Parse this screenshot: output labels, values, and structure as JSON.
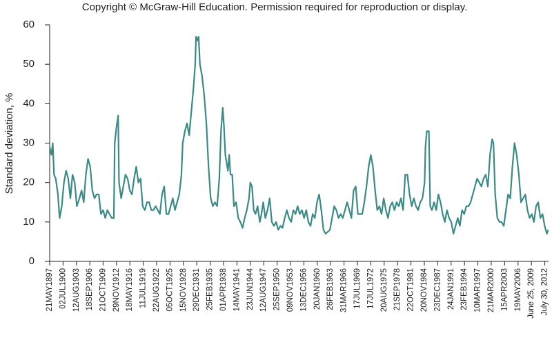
{
  "header": {
    "copyright": "Copyright © McGraw-Hill Education. Permission required for reproduction or display."
  },
  "chart_data": {
    "type": "line",
    "y_label": "Standard deviation, %",
    "xlim": [
      1897.39,
      2013.3
    ],
    "ylim": [
      0,
      60
    ],
    "yticks": [
      0,
      10,
      20,
      30,
      40,
      50,
      60
    ],
    "xticks": [
      {
        "value": 1897.39,
        "label": "21MAY1897"
      },
      {
        "value": 1900.5,
        "label": "02JUL1900"
      },
      {
        "value": 1903.61,
        "label": "12AUG1903"
      },
      {
        "value": 1906.71,
        "label": "18SEP1906"
      },
      {
        "value": 1909.8,
        "label": "21OCT1909"
      },
      {
        "value": 1912.91,
        "label": "29NOV1912"
      },
      {
        "value": 1916.02,
        "label": "18MAY1916"
      },
      {
        "value": 1919.13,
        "label": "11JUL1919"
      },
      {
        "value": 1922.24,
        "label": "22AUG1922"
      },
      {
        "value": 1925.35,
        "label": "05OCT1925"
      },
      {
        "value": 1928.46,
        "label": "15NOV1928"
      },
      {
        "value": 1931.57,
        "label": "29DEC1931"
      },
      {
        "value": 1934.68,
        "label": "25FEB1935"
      },
      {
        "value": 1937.79,
        "label": "01APR1938"
      },
      {
        "value": 1940.9,
        "label": "14MAY1941"
      },
      {
        "value": 1944.01,
        "label": "23JUN1944"
      },
      {
        "value": 1947.12,
        "label": "12AUG1947"
      },
      {
        "value": 1950.23,
        "label": "25SEP1950"
      },
      {
        "value": 1953.34,
        "label": "09NOV1953"
      },
      {
        "value": 1956.45,
        "label": "13DEC1956"
      },
      {
        "value": 1959.56,
        "label": "20JAN1960"
      },
      {
        "value": 1962.67,
        "label": "26FEB1963"
      },
      {
        "value": 1965.78,
        "label": "31MAR1966"
      },
      {
        "value": 1968.89,
        "label": "17JUL1969"
      },
      {
        "value": 1972.0,
        "label": "17JUL1972"
      },
      {
        "value": 1975.11,
        "label": "20AUG1975"
      },
      {
        "value": 1978.22,
        "label": "21SEP1978"
      },
      {
        "value": 1981.33,
        "label": "22OCT1981"
      },
      {
        "value": 1984.44,
        "label": "20NOV1984"
      },
      {
        "value": 1987.55,
        "label": "23DEC1987"
      },
      {
        "value": 1990.66,
        "label": "24JAN1991"
      },
      {
        "value": 1993.77,
        "label": "23FEB1994"
      },
      {
        "value": 1996.88,
        "label": "10MAR1997"
      },
      {
        "value": 1999.99,
        "label": "21MAR2000"
      },
      {
        "value": 2003.1,
        "label": "15APR2003"
      },
      {
        "value": 2006.21,
        "label": "19MAY2006"
      },
      {
        "value": 2009.32,
        "label": "June 25, 2009"
      },
      {
        "value": 2012.43,
        "label": "July 30, 2012"
      }
    ],
    "x": [
      1897.4,
      1897.8,
      1898.1,
      1898.4,
      1898.8,
      1899.3,
      1899.7,
      1900.2,
      1900.7,
      1901.2,
      1901.7,
      1902.2,
      1902.7,
      1903.2,
      1903.7,
      1904.3,
      1904.8,
      1905.3,
      1905.8,
      1906.3,
      1906.8,
      1907.3,
      1907.8,
      1908.3,
      1908.8,
      1909.3,
      1909.8,
      1910.3,
      1910.8,
      1911.3,
      1911.8,
      1912.3,
      1912.5,
      1912.9,
      1913.3,
      1913.5,
      1914.0,
      1914.5,
      1915.0,
      1915.5,
      1916.0,
      1916.5,
      1917.0,
      1917.5,
      1918.0,
      1918.5,
      1919.0,
      1919.5,
      1920.0,
      1920.5,
      1921.0,
      1921.5,
      1922.0,
      1922.5,
      1923.0,
      1923.5,
      1924.0,
      1924.5,
      1925.0,
      1925.5,
      1926.0,
      1926.5,
      1927.0,
      1927.5,
      1928.0,
      1928.3,
      1928.8,
      1929.3,
      1929.8,
      1930.3,
      1930.8,
      1931.2,
      1931.4,
      1931.7,
      1932.0,
      1932.3,
      1932.8,
      1933.3,
      1933.8,
      1934.3,
      1934.8,
      1935.3,
      1935.8,
      1936.3,
      1936.8,
      1937.2,
      1937.6,
      1937.9,
      1938.2,
      1938.5,
      1938.8,
      1939.1,
      1939.4,
      1939.8,
      1940.2,
      1940.7,
      1941.2,
      1941.7,
      1942.2,
      1942.7,
      1943.2,
      1943.7,
      1944.0,
      1944.4,
      1944.8,
      1945.2,
      1945.7,
      1946.2,
      1946.6,
      1947.0,
      1947.5,
      1948.0,
      1948.5,
      1949.0,
      1949.5,
      1950.0,
      1950.5,
      1951.0,
      1951.5,
      1952.0,
      1952.5,
      1953.0,
      1953.5,
      1954.0,
      1954.5,
      1955.0,
      1955.5,
      1956.0,
      1956.5,
      1957.0,
      1957.5,
      1958.0,
      1958.5,
      1959.0,
      1959.5,
      1960.0,
      1960.5,
      1961.0,
      1961.5,
      1962.0,
      1962.5,
      1963.0,
      1963.5,
      1964.0,
      1964.5,
      1965.0,
      1965.5,
      1966.0,
      1966.5,
      1967.0,
      1967.5,
      1968.0,
      1968.5,
      1969.0,
      1969.5,
      1970.0,
      1970.5,
      1971.0,
      1971.5,
      1972.0,
      1972.5,
      1973.0,
      1973.5,
      1974.0,
      1974.5,
      1975.0,
      1975.5,
      1976.0,
      1976.5,
      1977.0,
      1977.5,
      1978.0,
      1978.5,
      1979.0,
      1979.5,
      1980.0,
      1980.5,
      1981.0,
      1981.5,
      1982.0,
      1982.5,
      1983.0,
      1983.5,
      1984.0,
      1984.5,
      1984.7,
      1985.0,
      1985.5,
      1985.8,
      1986.2,
      1986.7,
      1987.2,
      1987.7,
      1988.2,
      1988.7,
      1989.2,
      1989.7,
      1990.2,
      1990.7,
      1991.2,
      1991.7,
      1992.2,
      1992.7,
      1993.2,
      1993.7,
      1994.2,
      1994.7,
      1995.2,
      1995.7,
      1996.2,
      1996.7,
      1997.2,
      1997.7,
      1998.2,
      1998.7,
      1999.2,
      1999.7,
      2000.2,
      2000.5,
      2000.9,
      2001.4,
      2001.9,
      2002.4,
      2002.9,
      2003.4,
      2003.9,
      2004.4,
      2004.9,
      2005.4,
      2005.9,
      2006.4,
      2006.9,
      2007.4,
      2007.9,
      2008.4,
      2008.9,
      2009.4,
      2009.9,
      2010.4,
      2010.9,
      2011.4,
      2011.9,
      2012.4,
      2012.9,
      2013.2
    ],
    "series": [
      {
        "color": "#3a8a87",
        "values": [
          29,
          27,
          30,
          22,
          21,
          17,
          11,
          14,
          20,
          23,
          21,
          16,
          22,
          20,
          14,
          16,
          18,
          15,
          22,
          26,
          24,
          18,
          16,
          17,
          17,
          12,
          13,
          11,
          13,
          12,
          11,
          11,
          30,
          34,
          37,
          20,
          16,
          19,
          22,
          21,
          18,
          17,
          21,
          24,
          20,
          21,
          14,
          13,
          15,
          15,
          13,
          13,
          14,
          13,
          12,
          17,
          19,
          12,
          12,
          14,
          16,
          13,
          15,
          17,
          22,
          30,
          33,
          35,
          32,
          38,
          44,
          50,
          57,
          56,
          57,
          50,
          47,
          42,
          35,
          24,
          16,
          14,
          15,
          14,
          21,
          33,
          39,
          34,
          27,
          25,
          23,
          27,
          22,
          22,
          14,
          15,
          11,
          10,
          8.5,
          11,
          13,
          16,
          20,
          19,
          13,
          12,
          14,
          10,
          12,
          15,
          11,
          13,
          16,
          10,
          9,
          10,
          8,
          9,
          8.5,
          11,
          13,
          11,
          10,
          13,
          12,
          14,
          12,
          13,
          11,
          13,
          10,
          9,
          12,
          11,
          15,
          17,
          13,
          8,
          7,
          7.5,
          8,
          11,
          14,
          13,
          11,
          12,
          11,
          13,
          15,
          13,
          11,
          18,
          19,
          12,
          12,
          12,
          15,
          19,
          24,
          27,
          24,
          18,
          13,
          14,
          12,
          16,
          13,
          11,
          14,
          15,
          13,
          15,
          14,
          16,
          13,
          22,
          22,
          17,
          14,
          16,
          14,
          13,
          15,
          16,
          20,
          29,
          33,
          33,
          14,
          13,
          15,
          13,
          17,
          15,
          12,
          10,
          13,
          11,
          10,
          7,
          9,
          11,
          9,
          13,
          12,
          14,
          14,
          15,
          17,
          19,
          21,
          20,
          19,
          21,
          22,
          19,
          27,
          31,
          30,
          17,
          11,
          10,
          10,
          9,
          13,
          17,
          16,
          24,
          30,
          27,
          22,
          15,
          16,
          17,
          13,
          11,
          12,
          10,
          14,
          15,
          11,
          12,
          9,
          7,
          8
        ]
      }
    ]
  }
}
